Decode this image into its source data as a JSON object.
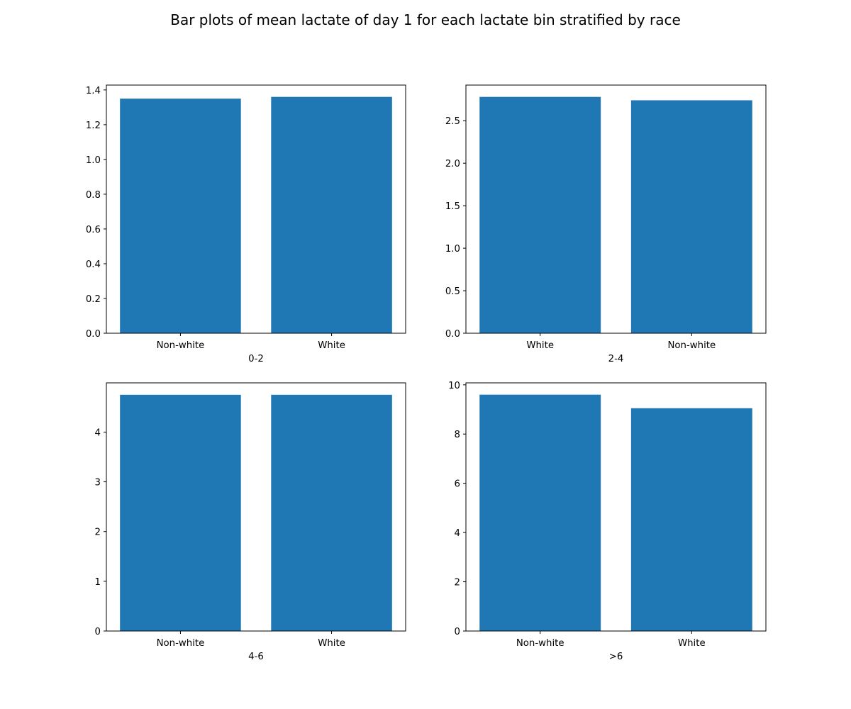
{
  "figure": {
    "title": "Bar plots of mean lactate of day 1 for each lactate bin stratified by race",
    "bar_color": "#1f77b4"
  },
  "chart_data": [
    {
      "type": "bar",
      "title": "",
      "categories": [
        "Non-white",
        "White"
      ],
      "values": [
        1.35,
        1.36
      ],
      "xlabel": "0-2",
      "ylabel": "",
      "ylim": [
        0,
        1.428
      ],
      "yticks": [
        0.0,
        0.2,
        0.4,
        0.6,
        0.8,
        1.0,
        1.2,
        1.4
      ],
      "ytick_labels": [
        "0.0",
        "0.2",
        "0.4",
        "0.6",
        "0.8",
        "1.0",
        "1.2",
        "1.4"
      ],
      "grid": false
    },
    {
      "type": "bar",
      "title": "",
      "categories": [
        "White",
        "Non-white"
      ],
      "values": [
        2.78,
        2.74
      ],
      "xlabel": "2-4",
      "ylabel": "",
      "ylim": [
        0,
        2.919
      ],
      "yticks": [
        0.0,
        0.5,
        1.0,
        1.5,
        2.0,
        2.5
      ],
      "ytick_labels": [
        "0.0",
        "0.5",
        "1.0",
        "1.5",
        "2.0",
        "2.5"
      ],
      "grid": false
    },
    {
      "type": "bar",
      "title": "",
      "categories": [
        "Non-white",
        "White"
      ],
      "values": [
        4.75,
        4.75
      ],
      "xlabel": "4-6",
      "ylabel": "",
      "ylim": [
        0,
        4.99
      ],
      "yticks": [
        0,
        1,
        2,
        3,
        4
      ],
      "ytick_labels": [
        "0",
        "1",
        "2",
        "3",
        "4"
      ],
      "grid": false
    },
    {
      "type": "bar",
      "title": "",
      "categories": [
        "Non-white",
        "White"
      ],
      "values": [
        9.6,
        9.05
      ],
      "xlabel": ">6",
      "ylabel": "",
      "ylim": [
        0,
        10.08
      ],
      "yticks": [
        0,
        2,
        4,
        6,
        8,
        10
      ],
      "ytick_labels": [
        "0",
        "2",
        "4",
        "6",
        "8",
        "10"
      ],
      "grid": false
    }
  ]
}
